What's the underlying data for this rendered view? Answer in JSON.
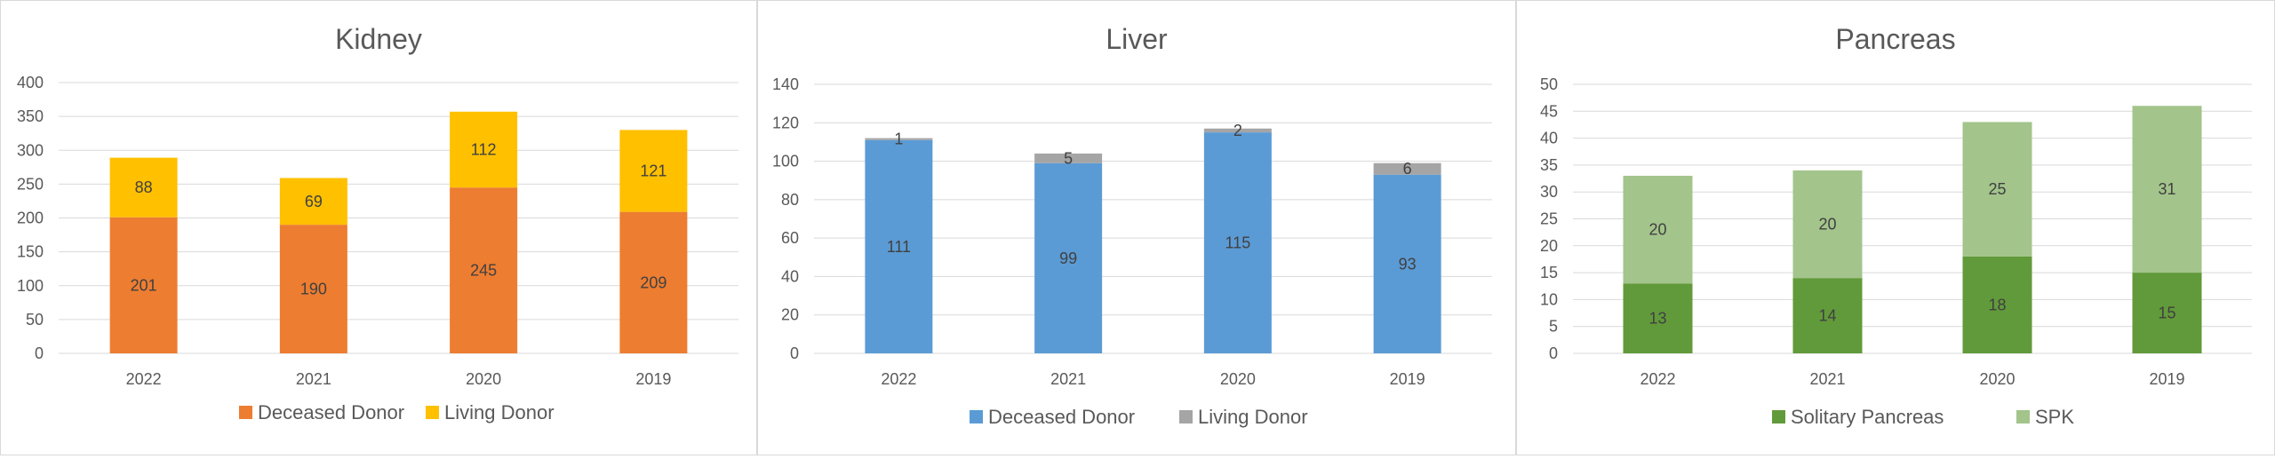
{
  "chart_data": [
    {
      "type": "bar",
      "stacked": true,
      "title": "Kidney",
      "categories": [
        "2022",
        "2021",
        "2020",
        "2019"
      ],
      "series": [
        {
          "name": "Deceased Donor",
          "values": [
            201,
            190,
            245,
            209
          ],
          "color": "#ED7D31"
        },
        {
          "name": "Living Donor",
          "values": [
            88,
            69,
            112,
            121
          ],
          "color": "#FFC000"
        }
      ],
      "ylim": [
        0,
        400
      ],
      "yticks": [
        0,
        50,
        100,
        150,
        200,
        250,
        300,
        350,
        400
      ],
      "grid": true,
      "legend": "bottom"
    },
    {
      "type": "bar",
      "stacked": true,
      "title": "Liver",
      "categories": [
        "2022",
        "2021",
        "2020",
        "2019"
      ],
      "series": [
        {
          "name": "Deceased Donor",
          "values": [
            111,
            99,
            115,
            93
          ],
          "color": "#5B9BD5"
        },
        {
          "name": "Living Donor",
          "values": [
            1,
            5,
            2,
            6
          ],
          "color": "#A5A5A5"
        }
      ],
      "ylim": [
        0,
        140
      ],
      "yticks": [
        0,
        20,
        40,
        60,
        80,
        100,
        120,
        140
      ],
      "grid": true,
      "legend": "bottom"
    },
    {
      "type": "bar",
      "stacked": true,
      "title": "Pancreas",
      "categories": [
        "2022",
        "2021",
        "2020",
        "2019"
      ],
      "series": [
        {
          "name": "Solitary Pancreas",
          "values": [
            13,
            14,
            18,
            15
          ],
          "color": "#619A3A"
        },
        {
          "name": "SPK",
          "values": [
            20,
            20,
            25,
            31
          ],
          "color": "#A3C48B"
        }
      ],
      "ylim": [
        0,
        50
      ],
      "yticks": [
        0,
        5,
        10,
        15,
        20,
        25,
        30,
        35,
        40,
        45,
        50
      ],
      "grid": true,
      "legend": "bottom"
    }
  ]
}
